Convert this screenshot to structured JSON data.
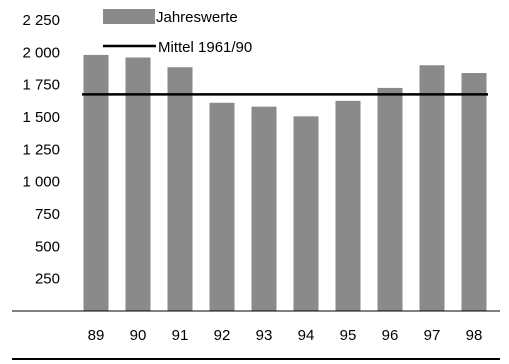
{
  "chart_data": {
    "type": "bar",
    "categories": [
      "89",
      "90",
      "91",
      "92",
      "93",
      "94",
      "95",
      "96",
      "97",
      "98"
    ],
    "series": [
      {
        "name": "Jahreswerte",
        "type": "bar",
        "values": [
          1980,
          1960,
          1885,
          1610,
          1580,
          1505,
          1625,
          1725,
          1900,
          1840
        ],
        "color": "#8a8a8a"
      },
      {
        "name": "Mittel 1961/90",
        "type": "line",
        "value": 1675,
        "color": "#000000"
      }
    ],
    "title": "",
    "xlabel": "",
    "ylabel": "",
    "ylim": [
      0,
      2250
    ],
    "yticks": [
      250,
      500,
      750,
      1000,
      1250,
      1500,
      1750,
      2000,
      2250
    ],
    "ytick_labels": [
      "250",
      "500",
      "750",
      "1 000",
      "1 250",
      "1 500",
      "1 750",
      "2 000",
      "2 250"
    ],
    "grid": false,
    "legend_position": "top-left"
  }
}
